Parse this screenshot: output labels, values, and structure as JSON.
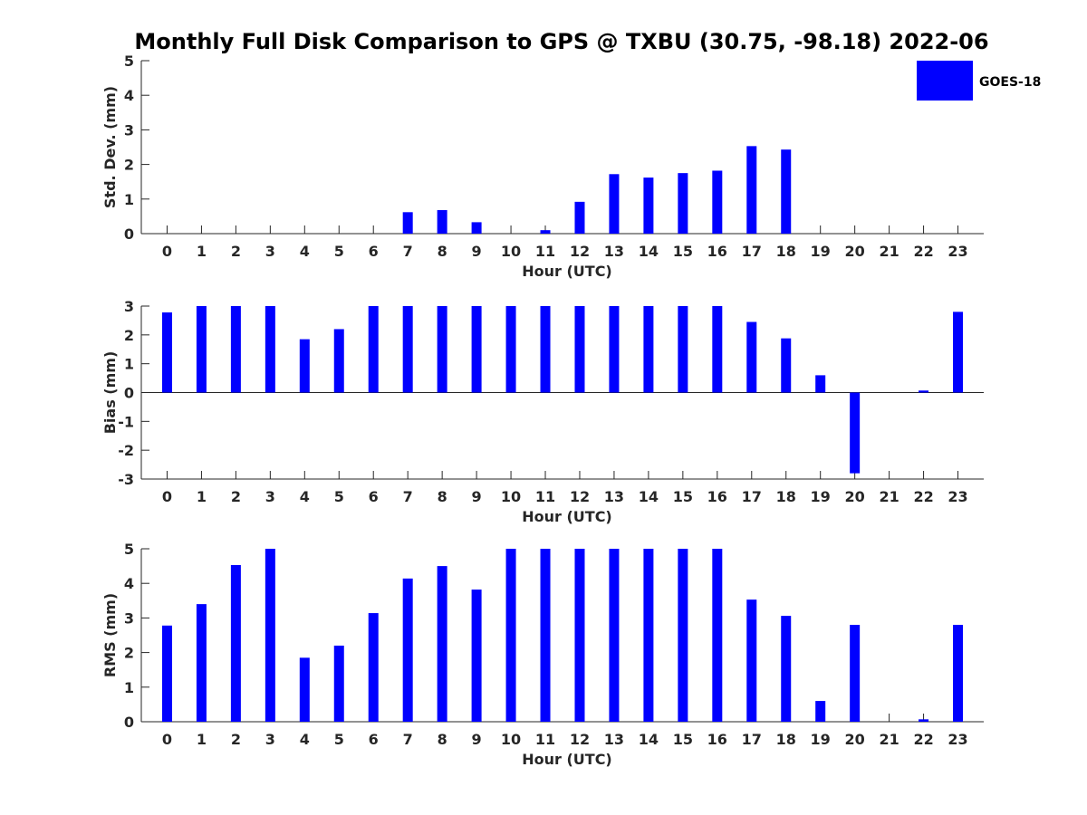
{
  "title": "Monthly Full Disk Comparison to GPS @ TXBU (30.75, -98.18) 2022-06",
  "legend": {
    "label": "GOES-18",
    "color": "#0000ff",
    "placement": "top-right"
  },
  "chart_data": [
    {
      "type": "bar",
      "ylabel": "Std. Dev. (mm)",
      "xlabel": "Hour (UTC)",
      "ylim": [
        0,
        5
      ],
      "yticks": [
        "0",
        "1",
        "2",
        "3",
        "4",
        "5"
      ],
      "categories": [
        "0",
        "1",
        "2",
        "3",
        "4",
        "5",
        "6",
        "7",
        "8",
        "9",
        "10",
        "11",
        "12",
        "13",
        "14",
        "15",
        "16",
        "17",
        "18",
        "19",
        "20",
        "21",
        "22",
        "23"
      ],
      "series": [
        {
          "name": "GOES-18",
          "values": [
            0,
            0,
            0,
            0,
            0,
            0,
            0,
            0.62,
            0.68,
            0.33,
            0,
            0.1,
            0.92,
            1.72,
            1.62,
            1.75,
            1.82,
            2.53,
            2.43,
            0,
            0,
            0,
            0,
            0
          ]
        }
      ]
    },
    {
      "type": "bar",
      "ylabel": "Bias (mm)",
      "xlabel": "Hour (UTC)",
      "ylim": [
        -3,
        3
      ],
      "yticks": [
        "-3",
        "-2",
        "-1",
        "0",
        "1",
        "2",
        "3"
      ],
      "categories": [
        "0",
        "1",
        "2",
        "3",
        "4",
        "5",
        "6",
        "7",
        "8",
        "9",
        "10",
        "11",
        "12",
        "13",
        "14",
        "15",
        "16",
        "17",
        "18",
        "19",
        "20",
        "21",
        "22",
        "23"
      ],
      "series": [
        {
          "name": "GOES-18",
          "values": [
            2.78,
            3,
            3,
            3,
            1.85,
            2.2,
            3,
            3,
            3,
            3,
            3,
            3,
            3,
            3,
            3,
            3,
            3,
            2.45,
            1.88,
            0.6,
            -2.8,
            0,
            0.07,
            2.8
          ]
        }
      ]
    },
    {
      "type": "bar",
      "ylabel": "RMS (mm)",
      "xlabel": "Hour (UTC)",
      "ylim": [
        0,
        5
      ],
      "yticks": [
        "0",
        "1",
        "2",
        "3",
        "4",
        "5"
      ],
      "categories": [
        "0",
        "1",
        "2",
        "3",
        "4",
        "5",
        "6",
        "7",
        "8",
        "9",
        "10",
        "11",
        "12",
        "13",
        "14",
        "15",
        "16",
        "17",
        "18",
        "19",
        "20",
        "21",
        "22",
        "23"
      ],
      "series": [
        {
          "name": "GOES-18",
          "values": [
            2.78,
            3.4,
            4.53,
            5,
            1.85,
            2.2,
            3.14,
            4.14,
            4.5,
            3.82,
            5,
            5,
            5,
            5,
            5,
            5,
            5,
            3.53,
            3.06,
            0.6,
            2.8,
            0,
            0.07,
            2.8
          ]
        }
      ]
    }
  ]
}
